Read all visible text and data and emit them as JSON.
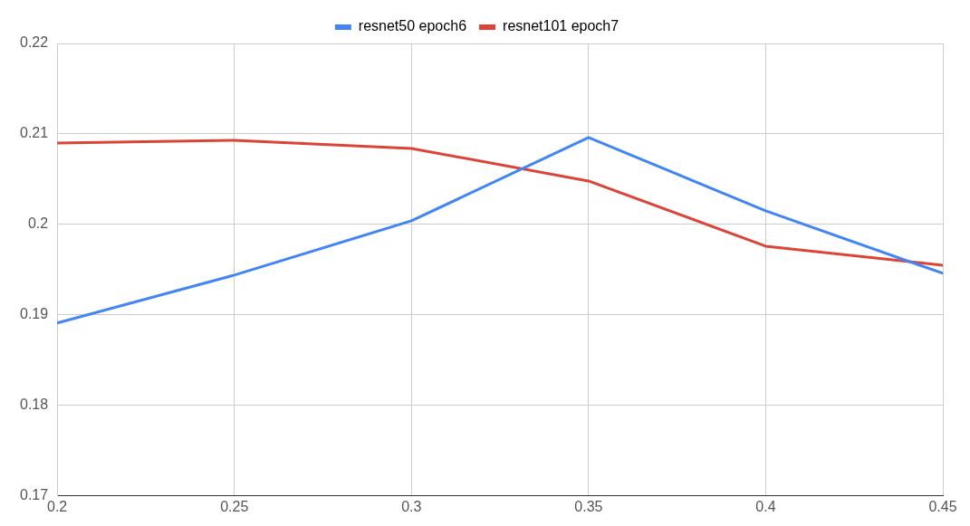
{
  "chart_data": {
    "type": "line",
    "x": [
      0.2,
      0.25,
      0.3,
      0.35,
      0.4,
      0.45
    ],
    "series": [
      {
        "name": "resnet50 epoch6",
        "color": "#4285f4",
        "values": [
          0.1891,
          0.1944,
          0.2004,
          0.2096,
          0.2015,
          0.1946
        ]
      },
      {
        "name": "resnet101 epoch7",
        "color": "#db4437",
        "values": [
          0.209,
          0.2093,
          0.2084,
          0.2048,
          0.1976,
          0.1955
        ]
      }
    ],
    "xlim": [
      0.2,
      0.45
    ],
    "xticks": [
      0.2,
      0.25,
      0.3,
      0.35,
      0.4,
      0.45
    ],
    "ylim": [
      0.17,
      0.22
    ],
    "yticks": [
      0.17,
      0.18,
      0.19,
      0.2,
      0.21,
      0.22
    ],
    "grid": true,
    "legend": "top",
    "marker": "none",
    "line_style": "solid"
  }
}
